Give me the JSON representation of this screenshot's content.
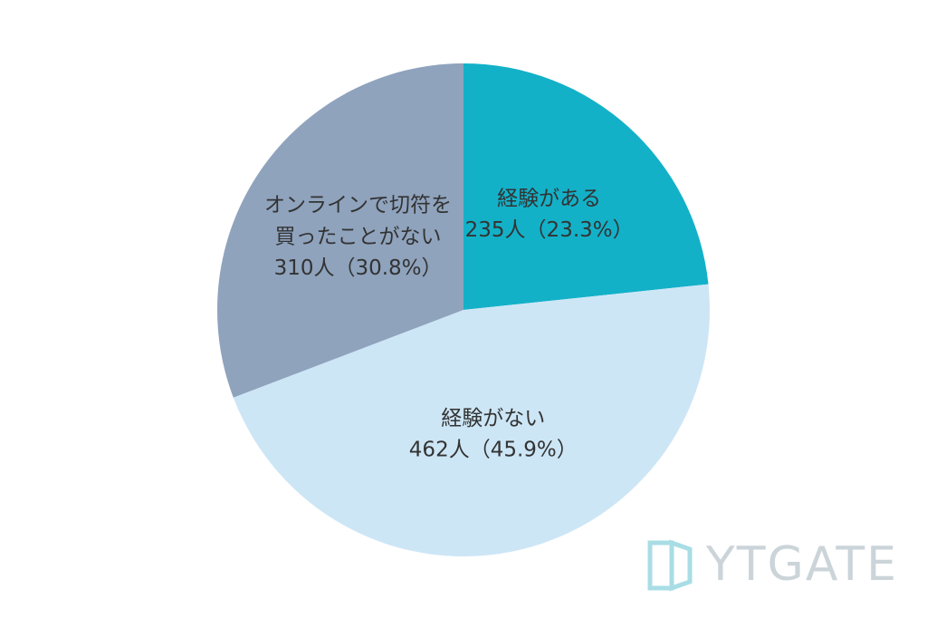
{
  "chart_data": {
    "type": "pie",
    "categories": [
      "経験がある",
      "経験がない",
      "オンラインで切符を\n買ったことがない"
    ],
    "values": [
      235,
      462,
      310
    ],
    "value_labels": [
      "235人（23.3%）",
      "462人（45.9%）",
      "310人（30.8%）"
    ],
    "colors": [
      "#13b1c8",
      "#cde6f6",
      "#8fa3bd"
    ]
  },
  "watermark": "YTGATE"
}
